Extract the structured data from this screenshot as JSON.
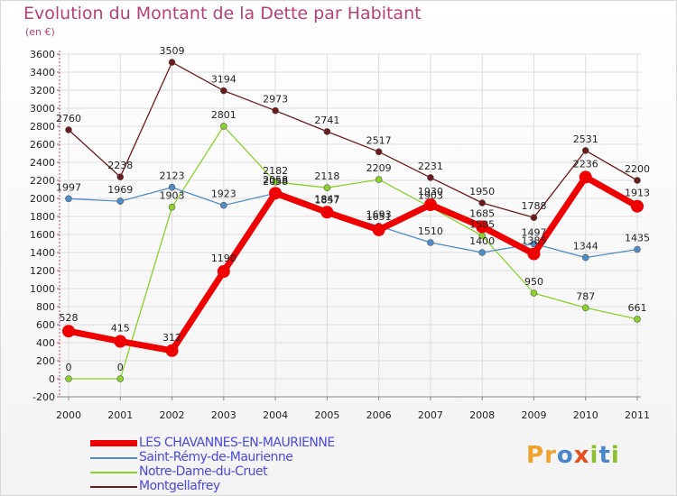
{
  "title": "Evolution du Montant de la Dette par Habitant",
  "subtitle": "(en €)",
  "logo": {
    "text": "Proxiti",
    "letters": [
      {
        "ch": "P",
        "color": "#f0a22e"
      },
      {
        "ch": "r",
        "color": "#f0a22e"
      },
      {
        "ch": "o",
        "color": "#4a86c8"
      },
      {
        "ch": "x",
        "color": "#e84e1b"
      },
      {
        "ch": "i",
        "color": "#8dbf2f"
      },
      {
        "ch": "t",
        "color": "#4a86c8"
      },
      {
        "ch": "i",
        "color": "#8dbf2f"
      }
    ]
  },
  "chart_data": {
    "type": "line",
    "title": "Evolution du Montant de la Dette par Habitant",
    "ylabel": "(en €)",
    "xlabel": "",
    "x": [
      "2000",
      "2001",
      "2002",
      "2003",
      "2004",
      "2005",
      "2006",
      "2007",
      "2008",
      "2009",
      "2010",
      "2011"
    ],
    "ylim": [
      -200,
      3600
    ],
    "yticks": [
      -200,
      0,
      200,
      400,
      600,
      800,
      1000,
      1200,
      1400,
      1600,
      1800,
      2000,
      2200,
      2400,
      2600,
      2800,
      3000,
      3200,
      3400,
      3600
    ],
    "grid": true,
    "legend_position": "bottom-left",
    "series": [
      {
        "name": "LES CHAVANNES-EN-MAURIENNE",
        "color": "#ee0000",
        "values": [
          528,
          415,
          312,
          1190,
          2058,
          1847,
          1651,
          1930,
          1685,
          1385,
          2236,
          1913
        ]
      },
      {
        "name": "Saint-Rémy-de-Maurienne",
        "color": "#4f8cc9",
        "values": [
          1997,
          1969,
          2123,
          1923,
          2058,
          1857,
          1693,
          1510,
          1400,
          1497,
          1344,
          1435
        ]
      },
      {
        "name": "Notre-Dame-du-Cruet",
        "color": "#8ad12a",
        "values": [
          0,
          0,
          1903,
          2801,
          2182,
          2118,
          2209,
          1903,
          1585,
          950,
          787,
          661
        ]
      },
      {
        "name": "Montgellafrey",
        "color": "#6b1b1b",
        "values": [
          2760,
          2238,
          3509,
          3194,
          2973,
          2741,
          2517,
          2231,
          1950,
          1788,
          2531,
          2200
        ]
      }
    ]
  }
}
